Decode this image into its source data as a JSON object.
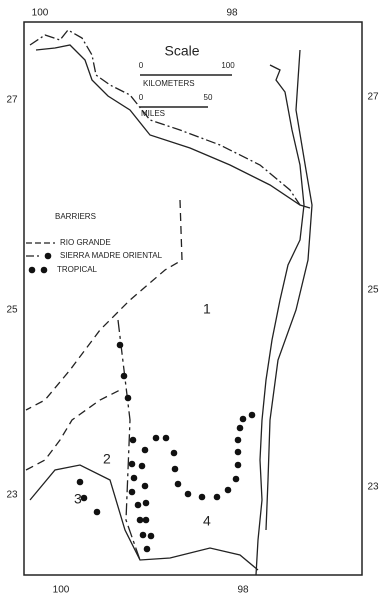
{
  "top_ticks": [
    "100",
    "98"
  ],
  "bottom_ticks": [
    "100",
    "98"
  ],
  "left_ticks": [
    "27",
    "25",
    "23"
  ],
  "right_ticks": [
    "27",
    "25",
    "23"
  ],
  "scale": {
    "title": "Scale",
    "km_start": "0",
    "km_end": "100",
    "km_unit": "KILOMETERS",
    "mi_start": "0",
    "mi_end": "50",
    "mi_unit": "MILES"
  },
  "legend": {
    "title": "BARRIERS",
    "items": [
      "RIO GRANDE",
      "SIERRA MADRE ORIENTAL",
      "TROPICAL"
    ]
  },
  "regions": [
    "1",
    "2",
    "3",
    "4"
  ]
}
